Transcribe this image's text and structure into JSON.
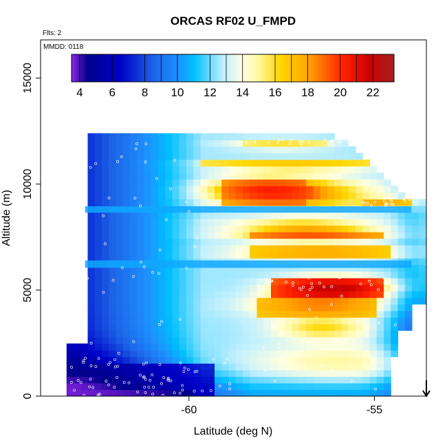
{
  "chart_data": {
    "type": "heatmap",
    "title": "ORCAS RF02 U_FMPD",
    "corner_labels": [
      "Flts: 2",
      "MMDD: 0118"
    ],
    "xlabel": "Latitude (deg N)",
    "ylabel": "Altitude (m)",
    "xlim": [
      -64,
      -53.6
    ],
    "ylim": [
      0,
      16800
    ],
    "xticks": [
      -60,
      -55
    ],
    "xtick_labels": [
      "-60",
      "-55"
    ],
    "yticks": [
      0,
      5000,
      10000,
      15000
    ],
    "ytick_labels": [
      "0",
      "5000",
      "10000",
      "15000"
    ],
    "colorbar": {
      "min": 3.5,
      "max": 23.3,
      "ticks": [
        4,
        6,
        8,
        10,
        12,
        14,
        16,
        18,
        20,
        22
      ],
      "tick_labels": [
        "4",
        "6",
        "8",
        "10",
        "12",
        "14",
        "16",
        "18",
        "20",
        "22"
      ],
      "colors": [
        "#8e24e8",
        "#00008b",
        "#0000c8",
        "#1c63e6",
        "#1e90ff",
        "#00bfff",
        "#bfefff",
        "#ffffe0",
        "#fff8a0",
        "#ffd700",
        "#ffa500",
        "#ff2000",
        "#cc0000",
        "#a82020"
      ],
      "color_stops": [
        3.5,
        4.5,
        6.5,
        8.5,
        10,
        11,
        12.8,
        14,
        15,
        16.3,
        18,
        20.2,
        21.8,
        23.3
      ]
    },
    "field_regions": [
      {
        "lat_range": [
          -63.3,
          -59.3
        ],
        "alt_range": [
          0,
          1600
        ],
        "value": 5
      },
      {
        "lat_range": [
          -63.3,
          -59.9
        ],
        "alt_range": [
          0,
          420
        ],
        "value": 3.8
      },
      {
        "lat_range": [
          -57.8,
          -54.7
        ],
        "alt_range": [
          4700,
          5500
        ],
        "value": 21.8
      },
      {
        "lat_range": [
          -58.2,
          -55.0
        ],
        "alt_range": [
          3700,
          4700
        ],
        "value": 18.5
      },
      {
        "lat_range": [
          -58.4,
          -54.8
        ],
        "alt_range": [
          7400,
          7900
        ],
        "value": 19.5
      },
      {
        "lat_range": [
          -58.3,
          -54.6
        ],
        "alt_range": [
          6500,
          7100
        ],
        "value": 17.8
      },
      {
        "lat_range": [
          -59.2,
          -56.8
        ],
        "alt_range": [
          9100,
          10200
        ],
        "value": 19.5
      },
      {
        "lat_range": [
          -55.3,
          -54.0
        ],
        "alt_range": [
          8900,
          9300
        ],
        "value": 18
      },
      {
        "lat_range": [
          -59.7,
          -54.7
        ],
        "alt_range": [
          10700,
          11100
        ],
        "value": 17
      },
      {
        "lat_range": [
          -58.6,
          -56.3
        ],
        "alt_range": [
          11700,
          12100
        ],
        "value": 16
      }
    ],
    "thin_bands": [
      {
        "lat_range": [
          -62.8,
          -54.0
        ],
        "alt_range": [
          8650,
          8950
        ],
        "value": 10.5
      },
      {
        "lat_range": [
          -62.8,
          -54.0
        ],
        "alt_range": [
          6050,
          6400
        ],
        "value": 10.5
      }
    ],
    "arrow_marker": {
      "lat": -53.6,
      "alt_top": 750,
      "alt_bottom": 0,
      "direction": "down"
    },
    "track_points_note": "scattered white open circles along flight tracks"
  }
}
